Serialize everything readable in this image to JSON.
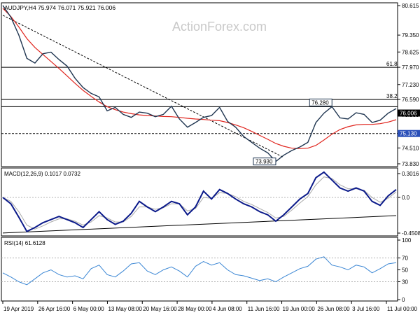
{
  "header": {
    "symbol_line": "AUDJPY,H4 75.974 76.071 75.921 76.006",
    "watermark": "ActionForex.com"
  },
  "chart_data": [
    {
      "type": "line",
      "name": "price",
      "x_labels": [
        "19 Apr 2019",
        "26 Apr 16:00",
        "6 May 00:00",
        "13 May 08:00",
        "20 May 16:00",
        "28 May 00:00",
        "4 Jun 08:00",
        "11 Jun 16:00",
        "19 Jun 00:00",
        "26 Jun 08:00",
        "3 Jul 16:00",
        "11 Jul 00:00"
      ],
      "yticks": [
        "80.615",
        "79.350",
        "78.625",
        "77.970",
        "77.230",
        "76.590",
        "75.930",
        "75.130",
        "74.510",
        "73.830"
      ],
      "ylim": [
        73.83,
        80.615
      ],
      "series": [
        {
          "values": [
            80.62,
            80.12,
            79.35,
            78.35,
            78.15,
            78.55,
            78.62,
            78.3,
            78.02,
            77.5,
            77.1,
            76.85,
            76.7,
            76.1,
            76.25,
            75.95,
            75.82,
            76.05,
            76.0,
            75.85,
            75.95,
            76.3,
            75.75,
            75.4,
            75.6,
            75.82,
            75.9,
            76.25,
            75.65,
            75.4,
            75.0,
            74.75,
            74.5,
            74.3,
            73.93,
            74.2,
            74.4,
            74.55,
            74.75,
            75.6,
            76.0,
            76.28,
            75.8,
            75.75,
            76.02,
            75.95,
            75.6,
            75.7,
            76.0,
            76.2
          ]
        },
        {
          "values": [
            80.5,
            80.15,
            79.7,
            79.2,
            78.82,
            78.52,
            78.22,
            77.92,
            77.6,
            77.28,
            76.98,
            76.72,
            76.48,
            76.28,
            76.15,
            76.05,
            75.98,
            75.93,
            75.9,
            75.88,
            75.86,
            75.85,
            75.82,
            75.78,
            75.75,
            75.73,
            75.7,
            75.68,
            75.6,
            75.5,
            75.38,
            75.22,
            75.05,
            74.88,
            74.7,
            74.58,
            74.5,
            74.48,
            74.5,
            74.62,
            74.85,
            75.1,
            75.3,
            75.42,
            75.5,
            75.52,
            75.52,
            75.55,
            75.62,
            75.72
          ]
        }
      ],
      "trendline": [
        80.2,
        74.1
      ],
      "levels": [
        {
          "label": "61.8",
          "value": 77.97
        },
        {
          "label": "38.2",
          "value": 76.59
        },
        {
          "label": "",
          "value": 76.28
        },
        {
          "label": "",
          "value": 75.13
        }
      ],
      "annotations": [
        {
          "text": "76.280",
          "value": 76.28
        },
        {
          "text": "73.930",
          "value": 73.93
        }
      ],
      "last_price_tag": "76.006",
      "last_price_value": 76.006,
      "level_tag": "75.130",
      "level_tag_value": 75.13,
      "colors": {
        "price": "#1f3550",
        "ma": "#e0251e",
        "trend": "#000000",
        "tag_dark": "#000000",
        "tag_blue": "#2a4fb8"
      }
    },
    {
      "type": "line",
      "name": "MACD",
      "label": "MACD(12,26,9) 0.1017 0.0732",
      "yticks": [
        "0.3016",
        "0.0",
        "-0.4508"
      ],
      "ylim": [
        -0.4508,
        0.3016
      ],
      "series": [
        {
          "values": [
            0.0,
            -0.08,
            -0.25,
            -0.43,
            -0.38,
            -0.32,
            -0.28,
            -0.24,
            -0.28,
            -0.32,
            -0.38,
            -0.28,
            -0.18,
            -0.28,
            -0.34,
            -0.3,
            -0.2,
            -0.05,
            -0.12,
            -0.18,
            -0.12,
            -0.05,
            -0.08,
            -0.22,
            -0.12,
            0.08,
            -0.02,
            0.1,
            0.05,
            -0.02,
            -0.08,
            -0.12,
            -0.18,
            -0.22,
            -0.3,
            -0.22,
            -0.12,
            -0.02,
            0.05,
            0.25,
            0.32,
            0.22,
            0.12,
            0.08,
            0.12,
            0.08,
            -0.05,
            -0.1,
            0.02,
            0.1
          ]
        },
        {
          "values": [
            0.0,
            -0.05,
            -0.18,
            -0.35,
            -0.4,
            -0.36,
            -0.31,
            -0.27,
            -0.27,
            -0.3,
            -0.35,
            -0.31,
            -0.23,
            -0.26,
            -0.31,
            -0.31,
            -0.24,
            -0.12,
            -0.12,
            -0.15,
            -0.13,
            -0.08,
            -0.08,
            -0.17,
            -0.14,
            0.0,
            -0.01,
            0.06,
            0.05,
            0.01,
            -0.05,
            -0.09,
            -0.14,
            -0.19,
            -0.26,
            -0.24,
            -0.16,
            -0.07,
            0.01,
            0.16,
            0.26,
            0.24,
            0.16,
            0.11,
            0.11,
            0.09,
            0.0,
            -0.06,
            -0.01,
            0.07
          ]
        }
      ],
      "trendline": [
        -0.45,
        -0.23
      ],
      "colors": {
        "macd": "#0b1a8a",
        "signal": "#aaaaaa",
        "trend": "#000000"
      }
    },
    {
      "type": "line",
      "name": "RSI",
      "label": "RSI(14) 61.6128",
      "yticks": [
        "100",
        "70",
        "50",
        "30",
        "0"
      ],
      "ylim": [
        0,
        100
      ],
      "levels": [
        70,
        30
      ],
      "series": [
        {
          "values": [
            45,
            38,
            30,
            25,
            35,
            45,
            50,
            42,
            38,
            40,
            35,
            52,
            58,
            42,
            38,
            48,
            60,
            62,
            48,
            42,
            50,
            55,
            48,
            38,
            56,
            64,
            58,
            62,
            50,
            42,
            40,
            36,
            32,
            35,
            30,
            38,
            45,
            52,
            56,
            68,
            72,
            58,
            55,
            50,
            58,
            55,
            45,
            52,
            60,
            62
          ]
        }
      ],
      "colors": {
        "rsi": "#3a86d4",
        "level": "#b0b0b0"
      }
    }
  ]
}
